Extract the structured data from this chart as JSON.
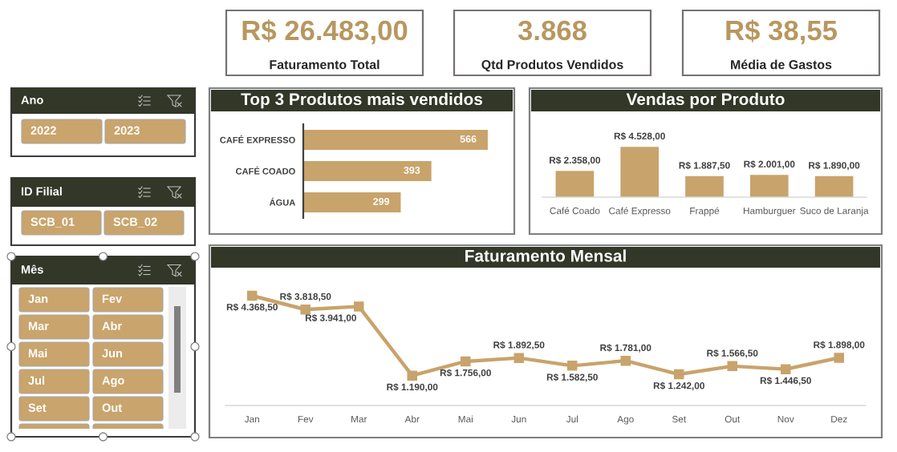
{
  "chart_data": [
    {
      "type": "other",
      "title": "Faturamento Total",
      "annotations": [
        "R$ 26.483,00"
      ]
    },
    {
      "type": "other",
      "title": "Qtd Produtos Vendidos",
      "annotations": [
        "3.868"
      ]
    },
    {
      "type": "other",
      "title": "Média de Gastos",
      "annotations": [
        "R$ 38,55"
      ]
    },
    {
      "type": "other",
      "title": "Ano",
      "annotations": [
        "2022",
        "2023"
      ]
    },
    {
      "type": "bar",
      "title": "Top 3 Produtos mais vendidos",
      "orientation": "horizontal",
      "categories": [
        "CAFÉ EXPRESSO",
        "CAFÉ COADO",
        "ÁGUA"
      ],
      "values": [
        566,
        393,
        299
      ],
      "color": "#c8a36b",
      "data_labels": true,
      "tick_labels": "y"
    },
    {
      "type": "bar",
      "title": "Vendas por Produto",
      "categories": [
        "Café Coado",
        "Café Expresso",
        "Frappé",
        "Hamburguer",
        "Suco de Laranja"
      ],
      "values": [
        2358.0,
        4528.0,
        1887.5,
        2001.0,
        1890.0
      ],
      "value_labels": [
        "R$ 2.358,00",
        "R$ 4.528,00",
        "R$ 1.887,50",
        "R$ 2.001,00",
        "R$ 1.890,00"
      ],
      "color": "#c8a36b",
      "tick_labels": "x"
    },
    {
      "type": "other",
      "title": "ID Filial",
      "annotations": [
        "SCB_01",
        "SCB_02"
      ]
    },
    {
      "type": "other",
      "title": "Mês",
      "annotations": [
        "Jan",
        "Fev",
        "Mar",
        "Abr",
        "Mai",
        "Jun",
        "Jul",
        "Ago",
        "Set",
        "Out"
      ]
    },
    {
      "type": "line",
      "title": "Faturamento Mensal",
      "categories": [
        "Jan",
        "Fev",
        "Mar",
        "Abr",
        "Mai",
        "Jun",
        "Jul",
        "Ago",
        "Set",
        "Out",
        "Nov",
        "Dez"
      ],
      "values": [
        4368.5,
        3818.5,
        3941.0,
        1190.0,
        1756.0,
        1892.5,
        1582.5,
        1781.0,
        1242.0,
        1566.5,
        1446.5,
        1898.0
      ],
      "value_labels": [
        "R$ 4.368,50",
        "R$ 3.818,50",
        "R$ 3.941,00",
        "R$ 1.190,00",
        "R$ 1.756,00",
        "R$ 1.892,50",
        "R$ 1.582,50",
        "R$ 1.781,00",
        "R$ 1.242,00",
        "R$ 1.566,50",
        "R$ 1.446,50",
        "R$ 1.898,00"
      ],
      "color": "#c8a36b",
      "marker": "square",
      "line_style": "solid",
      "tick_labels": "x"
    }
  ]
}
